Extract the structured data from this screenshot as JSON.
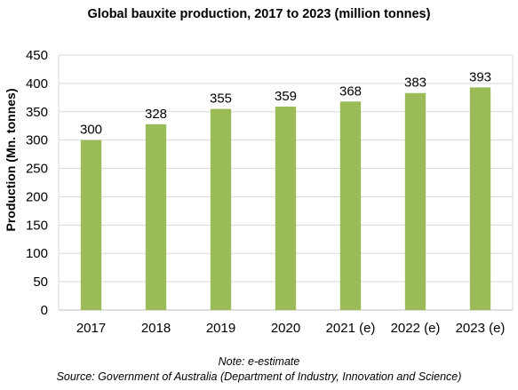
{
  "chart_data": {
    "type": "bar",
    "title": "Global bauxite production, 2017 to 2023 (million tonnes)",
    "ylabel": "Production (Mn. tonnes)",
    "xlabel": "",
    "categories": [
      "2017",
      "2018",
      "2019",
      "2020",
      "2021 (e)",
      "2022 (e)",
      "2023 (e)"
    ],
    "values": [
      300,
      328,
      355,
      359,
      368,
      383,
      393
    ],
    "data_labels": [
      "300",
      "328",
      "355",
      "359",
      "368",
      "383",
      "393"
    ],
    "ylim": [
      0,
      450
    ],
    "yticks": [
      0,
      50,
      100,
      150,
      200,
      250,
      300,
      350,
      400,
      450
    ],
    "ytick_labels": [
      "0",
      "50",
      "100",
      "150",
      "200",
      "250",
      "300",
      "350",
      "400",
      "450"
    ],
    "grid": true,
    "bar_color": "#9bbb59",
    "grid_color": "#d9d9d9"
  },
  "note": "Note: e-estimate",
  "source": "Source: Government of Australia (Department of Industry, Innovation and Science)"
}
